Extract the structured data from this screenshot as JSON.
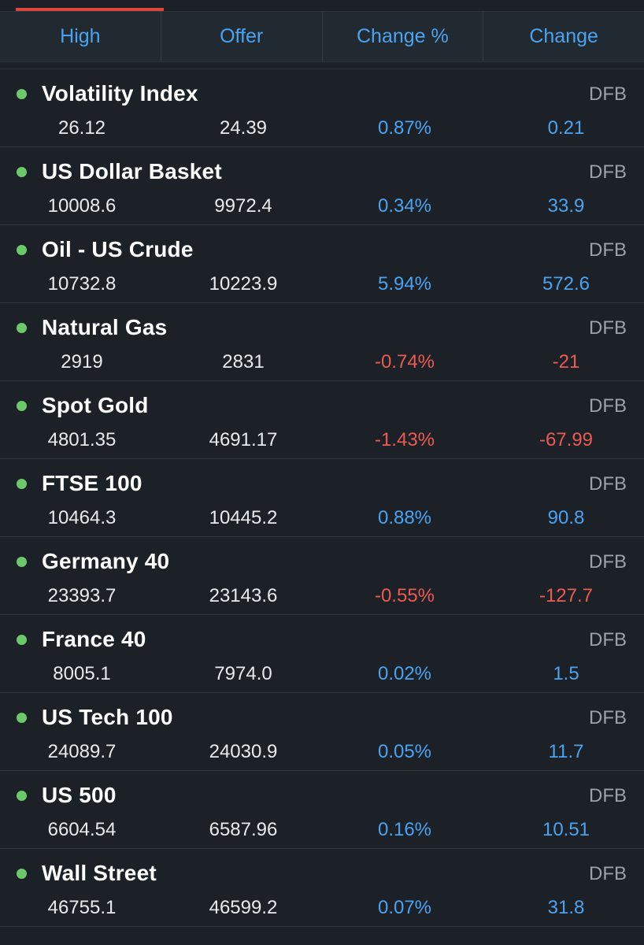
{
  "header": {
    "columns": [
      "High",
      "Offer",
      "Change %",
      "Change"
    ]
  },
  "colors": {
    "positive": "#4aa3f0",
    "negative": "#ec5a52",
    "status_dot": "#6dc86b",
    "accent": "#e0453c"
  },
  "markets": [
    {
      "name": "Volatility Index",
      "tag": "DFB",
      "high": "26.12",
      "offer": "24.39",
      "change_pct": "0.87%",
      "change": "0.21",
      "direction": "pos"
    },
    {
      "name": "US Dollar Basket",
      "tag": "DFB",
      "high": "10008.6",
      "offer": "9972.4",
      "change_pct": "0.34%",
      "change": "33.9",
      "direction": "pos"
    },
    {
      "name": "Oil - US Crude",
      "tag": "DFB",
      "high": "10732.8",
      "offer": "10223.9",
      "change_pct": "5.94%",
      "change": "572.6",
      "direction": "pos"
    },
    {
      "name": "Natural Gas",
      "tag": "DFB",
      "high": "2919",
      "offer": "2831",
      "change_pct": "-0.74%",
      "change": "-21",
      "direction": "neg"
    },
    {
      "name": "Spot Gold",
      "tag": "DFB",
      "high": "4801.35",
      "offer": "4691.17",
      "change_pct": "-1.43%",
      "change": "-67.99",
      "direction": "neg"
    },
    {
      "name": "FTSE 100",
      "tag": "DFB",
      "high": "10464.3",
      "offer": "10445.2",
      "change_pct": "0.88%",
      "change": "90.8",
      "direction": "pos"
    },
    {
      "name": "Germany 40",
      "tag": "DFB",
      "high": "23393.7",
      "offer": "23143.6",
      "change_pct": "-0.55%",
      "change": "-127.7",
      "direction": "neg"
    },
    {
      "name": "France 40",
      "tag": "DFB",
      "high": "8005.1",
      "offer": "7974.0",
      "change_pct": "0.02%",
      "change": "1.5",
      "direction": "pos"
    },
    {
      "name": "US Tech 100",
      "tag": "DFB",
      "high": "24089.7",
      "offer": "24030.9",
      "change_pct": "0.05%",
      "change": "11.7",
      "direction": "pos"
    },
    {
      "name": "US 500",
      "tag": "DFB",
      "high": "6604.54",
      "offer": "6587.96",
      "change_pct": "0.16%",
      "change": "10.51",
      "direction": "pos"
    },
    {
      "name": "Wall Street",
      "tag": "DFB",
      "high": "46755.1",
      "offer": "46599.2",
      "change_pct": "0.07%",
      "change": "31.8",
      "direction": "pos"
    }
  ]
}
